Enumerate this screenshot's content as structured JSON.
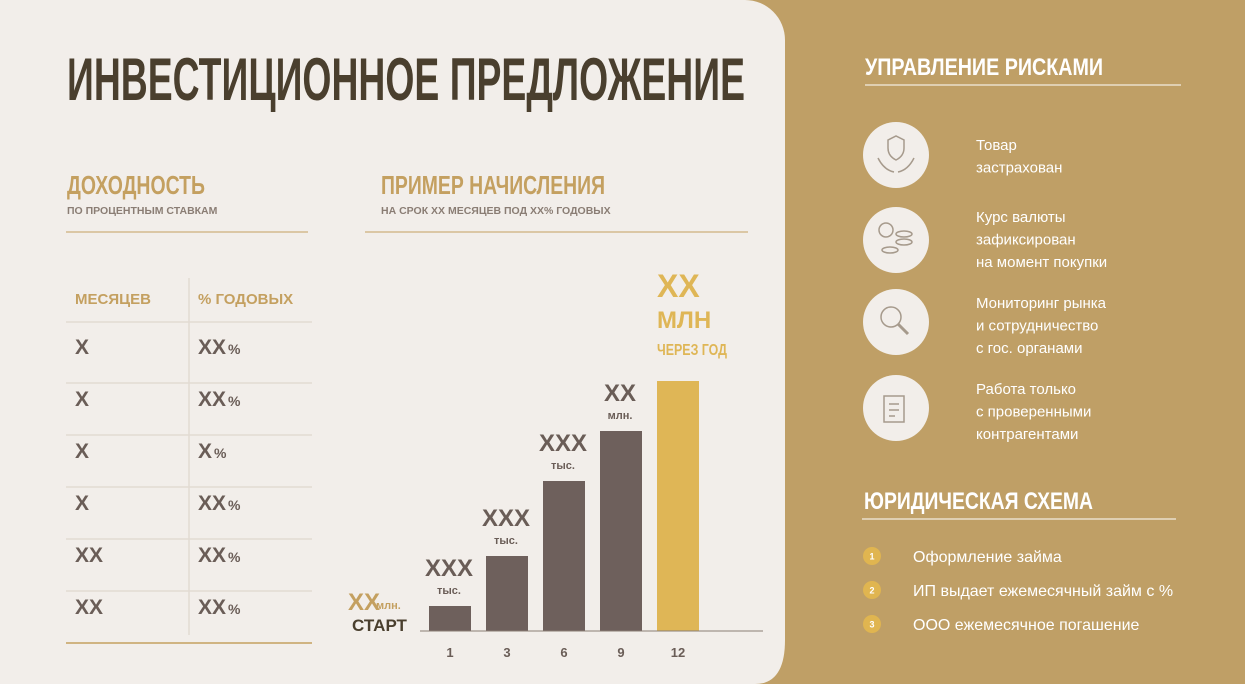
{
  "header": {
    "title": "ИНВЕСТИЦИОННОЕ ПРЕДЛОЖЕНИЕ"
  },
  "income": {
    "title": "ДОХОДНОСТЬ",
    "subtitle": "ПО ПРОЦЕНТНЫМ СТАВКАМ"
  },
  "table": {
    "columns": [
      "МЕСЯЦЕВ",
      "% ГОДОВЫХ"
    ],
    "rows": [
      [
        "X",
        {
          "value": "XX",
          "unit": "%"
        }
      ],
      [
        "X",
        {
          "value": "XX",
          "unit": "%"
        }
      ],
      [
        "X",
        {
          "value": "X",
          "unit": "%"
        }
      ],
      [
        "X",
        {
          "value": "XX",
          "unit": "%"
        }
      ],
      [
        "XX",
        {
          "value": "XX",
          "unit": "%"
        }
      ],
      [
        "XX",
        {
          "value": "XX",
          "unit": "%"
        }
      ]
    ]
  },
  "chart_data": {
    "type": "bar",
    "title": "ПРИМЕР НАЧИСЛЕНИЯ",
    "subtitle": "НА СРОК XX МЕСЯЦЕВ ПОД XX% ГОДОВЫХ",
    "categories": [
      "1",
      "3",
      "6",
      "9",
      "12"
    ],
    "values": [
      0.5,
      1.5,
      3,
      4,
      5
    ],
    "ylim": [
      0,
      5
    ],
    "colors": [
      "#6e605c",
      "#6e605c",
      "#6e605c",
      "#6e605c",
      "#dfb656"
    ],
    "bar_labels": [
      {
        "amount": "XXX",
        "unit": "тыс."
      },
      {
        "amount": "XXX",
        "unit": "тыс."
      },
      {
        "amount": "XXX",
        "unit": "тыс."
      },
      {
        "amount": "XX",
        "unit": "млн."
      },
      {
        "amount": "XX",
        "unit": "МЛН",
        "note": "ЧЕРЕЗ ГОД"
      }
    ],
    "start_label": {
      "amount": "XX",
      "unit": "млн.",
      "text": "СТАРТ"
    }
  },
  "risks": {
    "title": "УПРАВЛЕНИЕ РИСКАМИ",
    "items": [
      {
        "lines": [
          "Товар",
          "застрахован"
        ]
      },
      {
        "lines": [
          "Курс валюты",
          "зафиксирован",
          "на момент покупки"
        ]
      },
      {
        "lines": [
          "Мониторинг рынка",
          "и сотрудничество",
          "с гос. органами"
        ]
      },
      {
        "lines": [
          "Работа только",
          "с проверенными",
          "контрагентами"
        ]
      }
    ]
  },
  "legal": {
    "title": "ЮРИДИЧЕСКАЯ СХЕМА",
    "steps": [
      {
        "number": "1",
        "text": "Оформление займа"
      },
      {
        "number": "2",
        "text": "ИП выдает ежемесячный займ с %"
      },
      {
        "number": "3",
        "text": "ООО ежемесячное погашение"
      }
    ]
  }
}
